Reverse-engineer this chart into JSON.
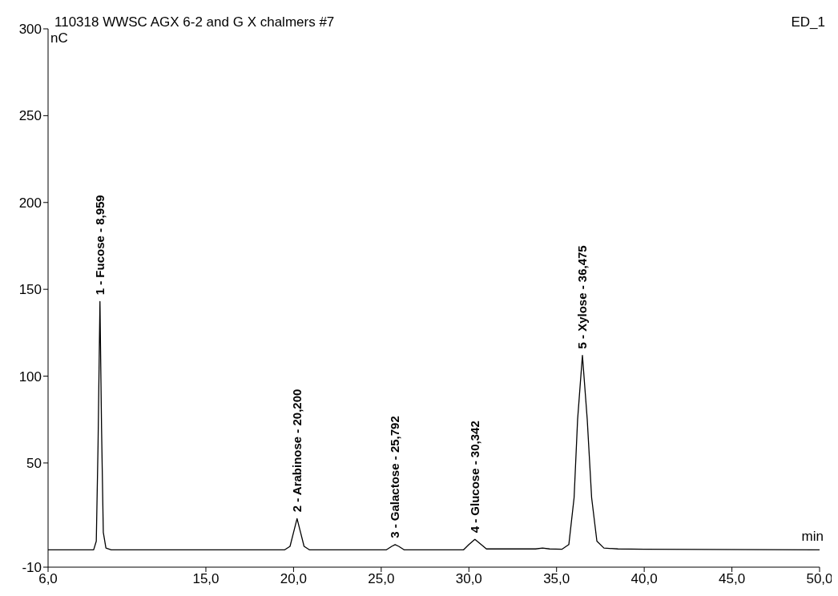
{
  "chart_data": {
    "type": "line",
    "title": "110318 WWSC AGX 6-2 and G X chalmers #7",
    "xlabel": "min",
    "ylabel": "nC",
    "annotations": [
      "ED_1",
      {
        "text": "1 - Fucose - 8,959",
        "x": 8.959,
        "y": 143
      },
      {
        "text": "2 - Arabinose - 20,200",
        "x": 20.2,
        "y": 18
      },
      {
        "text": "3 - Galactose - 25,792",
        "x": 25.792,
        "y": 3
      },
      {
        "text": "4 - Glucose - 30,342",
        "x": 30.342,
        "y": 6
      },
      {
        "text": "5 - Xylose - 36,475",
        "x": 36.475,
        "y": 112
      }
    ],
    "series": [
      {
        "color": "#000000",
        "x": [
          6.0,
          8.0,
          8.6,
          8.75,
          8.85,
          8.959,
          9.05,
          9.15,
          9.3,
          9.6,
          19.5,
          19.8,
          20.0,
          20.2,
          20.4,
          20.6,
          20.9,
          25.3,
          25.6,
          25.792,
          26.0,
          26.3,
          29.7,
          30.0,
          30.342,
          30.7,
          31.0,
          33.8,
          34.2,
          34.6,
          35.3,
          35.7,
          36.0,
          36.2,
          36.475,
          36.75,
          37.0,
          37.3,
          37.7,
          38.5,
          40.0,
          50.0
        ],
        "values": [
          0,
          0,
          0,
          5,
          60,
          143,
          70,
          10,
          1,
          0,
          0,
          2,
          10,
          18,
          10,
          2,
          0,
          0,
          2,
          3,
          2,
          0,
          0,
          3,
          6,
          3,
          0.5,
          0.5,
          1,
          0.5,
          0.3,
          3,
          30,
          75,
          112,
          75,
          30,
          5,
          1,
          0.5,
          0.3,
          0
        ]
      }
    ],
    "xlim": [
      6,
      50
    ],
    "xticks": [
      {
        "value": 6,
        "label": "6,0"
      },
      {
        "value": 15,
        "label": "15,0"
      },
      {
        "value": 20,
        "label": "20,0"
      },
      {
        "value": 25,
        "label": "25,0"
      },
      {
        "value": 30,
        "label": "30,0"
      },
      {
        "value": 35,
        "label": "35,0"
      },
      {
        "value": 40,
        "label": "40,0"
      },
      {
        "value": 45,
        "label": "45,0"
      },
      {
        "value": 50,
        "label": "50,0"
      }
    ],
    "ylim": [
      -10,
      300
    ],
    "yticks": [
      -10,
      50,
      100,
      150,
      200,
      250,
      300
    ],
    "grid": false,
    "legend": false,
    "marker": "none",
    "line_style": "solid"
  }
}
